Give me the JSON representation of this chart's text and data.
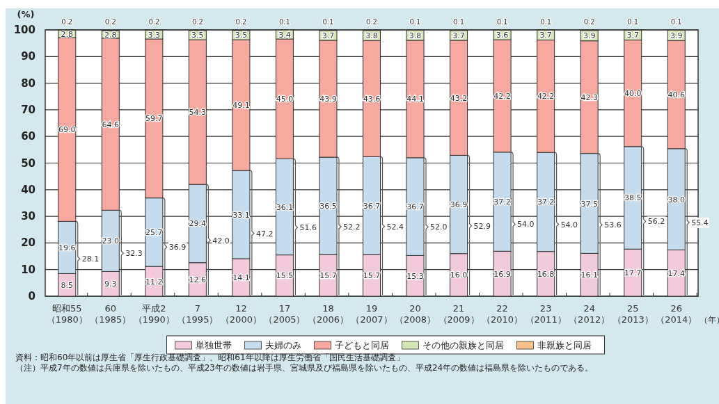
{
  "chart_data": {
    "type": "bar",
    "stacked": true,
    "ylabel": "(%)",
    "xlabel": "（年）",
    "categories": [
      "昭和55\n（1980）",
      "60\n（1985）",
      "平成2\n（1990）",
      "7\n（1995）",
      "12\n（2000）",
      "17\n（2005）",
      "18\n（2006）",
      "19\n（2007）",
      "20\n（2008）",
      "21\n（2009）",
      "22\n（2010）",
      "23\n（2011）",
      "24\n（2012）",
      "25\n（2013）",
      "26\n（2014）"
    ],
    "series": [
      {
        "name": "単独世帯",
        "color": "#f3c9dc",
        "values": [
          8.5,
          9.3,
          11.2,
          12.6,
          14.1,
          15.5,
          15.7,
          15.7,
          15.3,
          16.0,
          16.9,
          16.8,
          16.1,
          17.7,
          17.4
        ],
        "value_labels": [
          "8.5",
          "9.3",
          "11.2",
          "12.6",
          "14.1",
          "15.5",
          "15.7",
          "15.7",
          "15.3",
          "16.0",
          "16.9",
          "16.8",
          "16.1",
          "17.7",
          "17.4"
        ]
      },
      {
        "name": "夫婦のみ",
        "color": "#c5dcee",
        "values": [
          19.6,
          23.0,
          25.7,
          29.4,
          33.1,
          36.1,
          36.5,
          36.7,
          36.7,
          36.9,
          37.2,
          37.2,
          37.5,
          38.5,
          38.0
        ],
        "value_labels": [
          "19.6",
          "23.0",
          "25.7",
          "29.4",
          "33.1",
          "36.1",
          "36.5",
          "36.7",
          "36.7",
          "36.9",
          "37.2",
          "37.2",
          "37.5",
          "38.5",
          "38.0"
        ]
      },
      {
        "name": "子どもと同居",
        "color": "#f7a9a0",
        "values": [
          69.0,
          64.6,
          59.7,
          54.3,
          49.1,
          45.0,
          43.9,
          43.6,
          44.1,
          43.2,
          42.2,
          42.2,
          42.3,
          40.0,
          40.6
        ],
        "value_labels": [
          "69.0",
          "64.6",
          "59.7",
          "54.3",
          "49.1",
          "45.0",
          "43.9",
          "43.6",
          "44.1",
          "43.2",
          "42.2",
          "42.2",
          "42.3",
          "40.0",
          "40.6"
        ]
      },
      {
        "name": "その他の親族と同居",
        "color": "#d5e6b5",
        "values": [
          2.8,
          2.8,
          3.3,
          3.5,
          3.5,
          3.4,
          3.7,
          3.8,
          3.8,
          3.7,
          3.6,
          3.7,
          3.9,
          3.7,
          3.9
        ],
        "value_labels": [
          "2.8",
          "2.8",
          "3.3",
          "3.5",
          "3.5",
          "3.4",
          "3.7",
          "3.8",
          "3.8",
          "3.7",
          "3.6",
          "3.7",
          "3.9",
          "3.7",
          "3.9"
        ]
      },
      {
        "name": "非親族と同居",
        "color": "#f9c08a",
        "values": [
          0.2,
          0.2,
          0.2,
          0.2,
          0.2,
          0.1,
          0.1,
          0.2,
          0.1,
          0.1,
          0.1,
          0.1,
          0.2,
          0.1,
          0.1
        ],
        "value_labels": [
          "0.2",
          "0.2",
          "0.2",
          "0.2",
          "0.2",
          "0.1",
          "0.1",
          "0.2",
          "0.1",
          "0.1",
          "0.1",
          "0.1",
          "0.2",
          "0.1",
          "0.1"
        ]
      }
    ],
    "ylim": [
      0,
      100
    ],
    "yticks": [
      0,
      10,
      20,
      30,
      40,
      50,
      60,
      70,
      80,
      90,
      100
    ],
    "grid": "y",
    "legend": "bottom",
    "data_labels": true,
    "annotations": [
      "28.1",
      "32.3",
      "36.9",
      "42.0",
      "47.2",
      "51.6",
      "52.2",
      "52.4",
      "52.0",
      "52.9",
      "54.0",
      "54.0",
      "53.6",
      "56.2",
      "55.4",
      "資料：昭和60年以前は厚生省「厚生行政基礎調査」、昭和61年以降は厚生労働省「国民生活基礎調査」",
      "（注）平成7年の数値は兵庫県を除いたもの、平成23年の数値は岩手県、宮城県及び福島県を除いたもの、平成24年の数値は福島県を除いたものである。"
    ]
  }
}
